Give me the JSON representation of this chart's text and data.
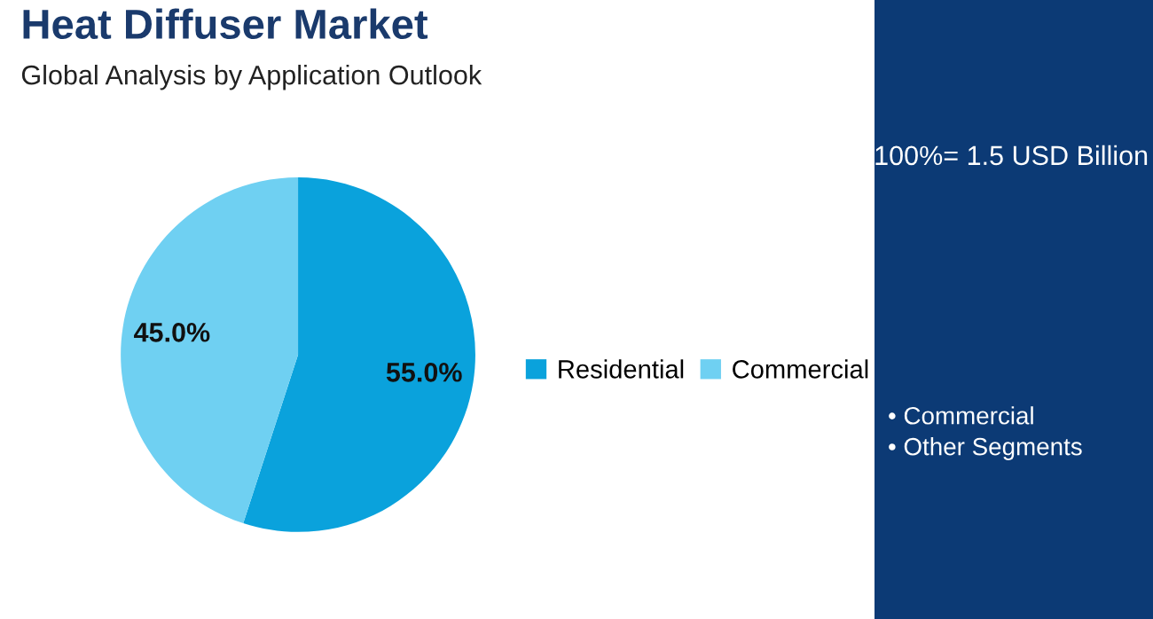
{
  "chart_data": {
    "type": "pie",
    "title": "Heat Diffuser Market",
    "subtitle": "Global Analysis by Application Outlook",
    "categories": [
      "Residential",
      "Commercial"
    ],
    "values": [
      55.0,
      45.0
    ],
    "colors": [
      "#0aa2dc",
      "#6fd0f2"
    ],
    "value_labels": [
      "55.0%",
      "45.0%"
    ],
    "legend": "right",
    "annotations": [
      "100%= 1.5 USD Billion",
      "• Commercial",
      "• Other Segments"
    ]
  }
}
